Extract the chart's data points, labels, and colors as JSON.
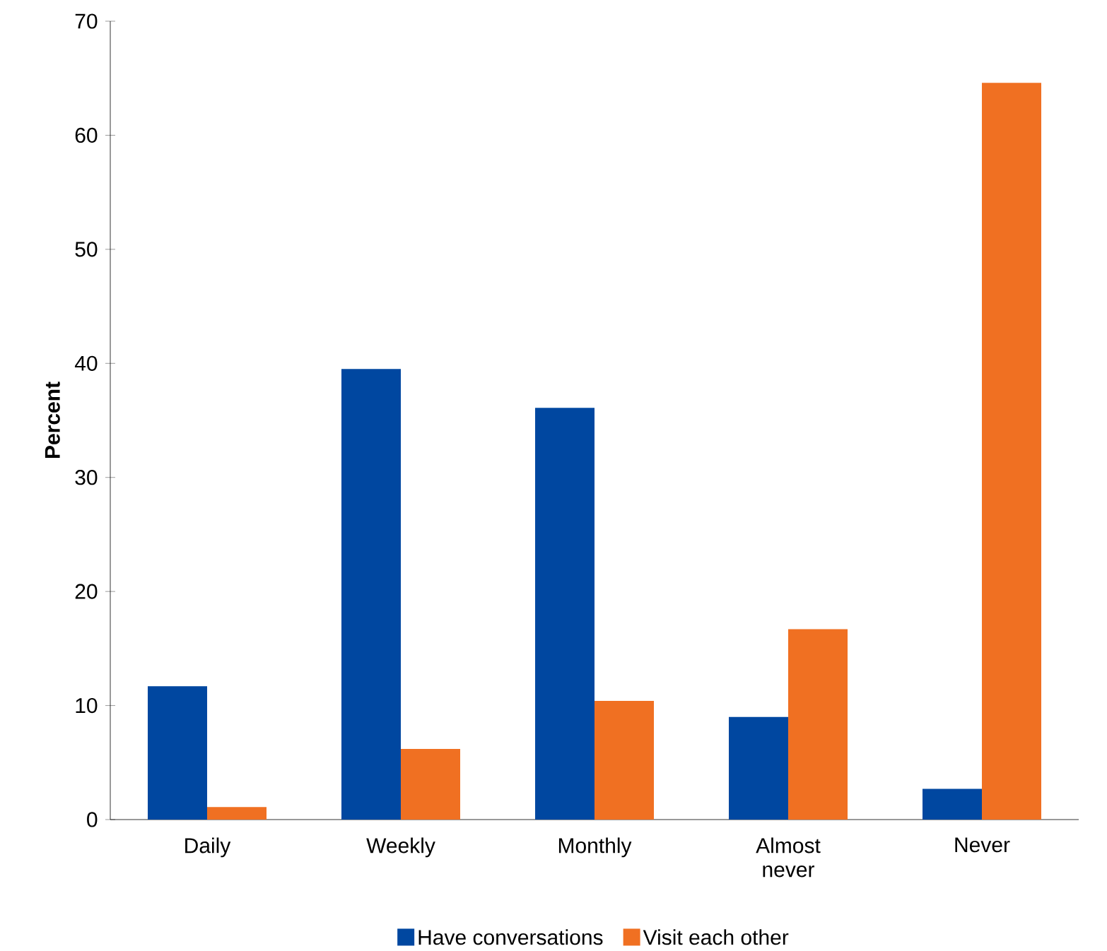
{
  "chart_data": {
    "type": "bar",
    "ylabel": "Percent",
    "categories": [
      "Daily",
      "Weekly",
      "Monthly",
      "Almost never",
      "Never"
    ],
    "series": [
      {
        "name": "Have conversations",
        "color": "#0047a0",
        "values": [
          11.7,
          39.5,
          36.1,
          9.0,
          2.7
        ]
      },
      {
        "name": "Visit each other",
        "color": "#f07022",
        "values": [
          1.1,
          6.2,
          10.4,
          16.7,
          64.6
        ]
      }
    ],
    "ylim": [
      0,
      70
    ],
    "yticks": [
      0,
      10,
      20,
      30,
      40,
      50,
      60,
      70
    ],
    "legend": "bottom"
  }
}
